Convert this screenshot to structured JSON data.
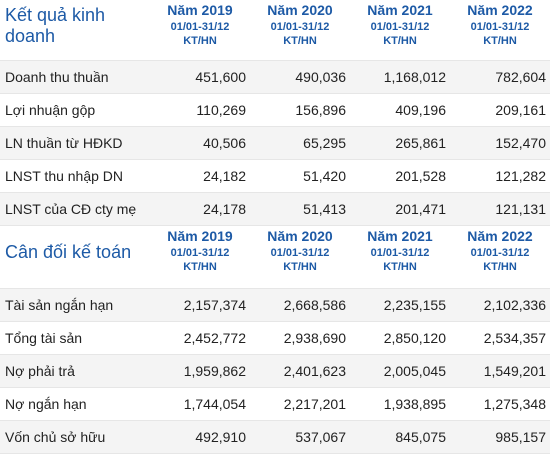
{
  "income": {
    "title": "Kết quả kinh doanh",
    "columns": [
      {
        "year": "Năm 2019",
        "range": "01/01-31/12",
        "unit": "KT/HN"
      },
      {
        "year": "Năm 2020",
        "range": "01/01-31/12",
        "unit": "KT/HN"
      },
      {
        "year": "Năm 2021",
        "range": "01/01-31/12",
        "unit": "KT/HN"
      },
      {
        "year": "Năm 2022",
        "range": "01/01-31/12",
        "unit": "KT/HN"
      }
    ],
    "rows": [
      {
        "label": "Doanh thu thuần",
        "values": [
          "451,600",
          "490,036",
          "1,168,012",
          "782,604"
        ]
      },
      {
        "label": "Lợi nhuận gộp",
        "values": [
          "110,269",
          "156,896",
          "409,196",
          "209,161"
        ]
      },
      {
        "label": "LN thuần từ HĐKD",
        "values": [
          "40,506",
          "65,295",
          "265,861",
          "152,470"
        ]
      },
      {
        "label": "LNST thu nhập DN",
        "values": [
          "24,182",
          "51,420",
          "201,528",
          "121,282"
        ]
      },
      {
        "label": "LNST của CĐ cty mẹ",
        "values": [
          "24,178",
          "51,413",
          "201,471",
          "121,131"
        ]
      }
    ]
  },
  "balance": {
    "title": "Cân đối kế toán",
    "columns": [
      {
        "year": "Năm 2019",
        "range": "01/01-31/12",
        "unit": "KT/HN"
      },
      {
        "year": "Năm 2020",
        "range": "01/01-31/12",
        "unit": "KT/HN"
      },
      {
        "year": "Năm 2021",
        "range": "01/01-31/12",
        "unit": "KT/HN"
      },
      {
        "year": "Năm 2022",
        "range": "01/01-31/12",
        "unit": "KT/HN"
      }
    ],
    "rows": [
      {
        "label": "Tài sản ngắn hạn",
        "values": [
          "2,157,374",
          "2,668,586",
          "2,235,155",
          "2,102,336"
        ]
      },
      {
        "label": "Tổng tài sản",
        "values": [
          "2,452,772",
          "2,938,690",
          "2,850,120",
          "2,534,357"
        ]
      },
      {
        "label": "Nợ phải trả",
        "values": [
          "1,959,862",
          "2,401,623",
          "2,005,045",
          "1,549,201"
        ]
      },
      {
        "label": "Nợ ngắn hạn",
        "values": [
          "1,744,054",
          "2,217,201",
          "1,938,895",
          "1,275,348"
        ]
      },
      {
        "label": "Vốn chủ sở hữu",
        "values": [
          "492,910",
          "537,067",
          "845,075",
          "985,157"
        ]
      }
    ]
  }
}
